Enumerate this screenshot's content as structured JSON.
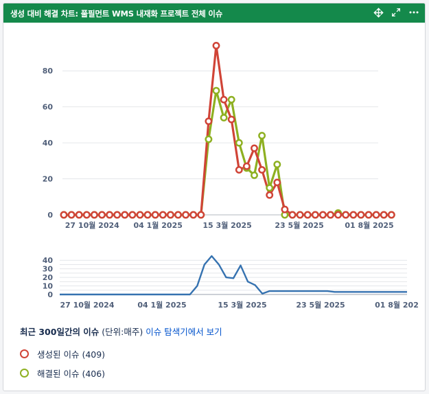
{
  "header": {
    "title": "생성 대비 해결 차트: 풀필먼트 WMS 내재화 프로젝트 전체 이슈",
    "icons": [
      "move-icon",
      "expand-icon",
      "more-icon"
    ]
  },
  "footer": {
    "period_text": "최근 300일간의 이슈",
    "unit_text": "(단위:매주)",
    "link_text": "이슈 탐색기에서 보기"
  },
  "legend": [
    {
      "label": "생성된 이슈 (409)",
      "color": "#d04437"
    },
    {
      "label": "해결된 이슈 (406)",
      "color": "#8eb021"
    }
  ],
  "chart_data": [
    {
      "type": "line",
      "ylim": [
        0,
        90
      ],
      "yticks": [
        0,
        20,
        40,
        60,
        80
      ],
      "xticks": [
        "27 10월 2024",
        "04 1월 2025",
        "15 3월 2025",
        "23 5월 2025",
        "01 8월 2025"
      ],
      "grid": true,
      "series": [
        {
          "name": "생성된 이슈",
          "color": "#d04437",
          "values": [
            0,
            0,
            0,
            0,
            0,
            0,
            0,
            0,
            0,
            0,
            0,
            0,
            0,
            0,
            0,
            0,
            0,
            0,
            0,
            52,
            94,
            64,
            53,
            25,
            27,
            37,
            25,
            11,
            18,
            3,
            0,
            0,
            0,
            0,
            0,
            0,
            0,
            0,
            0,
            0,
            0,
            0,
            0,
            0
          ]
        },
        {
          "name": "해결된 이슈",
          "color": "#8eb021",
          "values": [
            0,
            0,
            0,
            0,
            0,
            0,
            0,
            0,
            0,
            0,
            0,
            0,
            0,
            0,
            0,
            0,
            0,
            0,
            0,
            42,
            69,
            54,
            64,
            40,
            26,
            22,
            44,
            15,
            28,
            0,
            0,
            0,
            0,
            0,
            0,
            0,
            1,
            0,
            0,
            0,
            0,
            0,
            0,
            0
          ]
        }
      ]
    },
    {
      "type": "line",
      "ylim": [
        0,
        45
      ],
      "yticks": [
        0,
        5,
        10,
        15,
        20,
        25,
        30,
        35,
        40
      ],
      "ytick_labels": [
        0,
        10,
        20,
        30,
        40
      ],
      "xticks": [
        "27 10월 2024",
        "04 1월 2025",
        "15 3월 2025",
        "23 5월 2025",
        "01 8월 202"
      ],
      "grid": true,
      "series": [
        {
          "color": "#3572b0",
          "values": [
            0,
            0,
            0,
            0,
            0,
            0,
            0,
            0,
            0,
            0,
            0,
            0,
            0,
            0,
            0,
            0,
            0,
            0,
            0,
            10,
            35,
            45,
            35,
            20,
            19,
            34,
            15,
            11,
            1,
            4,
            4,
            4,
            4,
            4,
            4,
            4,
            4,
            4,
            3,
            3,
            3,
            3,
            3,
            3,
            3,
            3,
            3,
            3,
            3
          ]
        }
      ]
    }
  ]
}
